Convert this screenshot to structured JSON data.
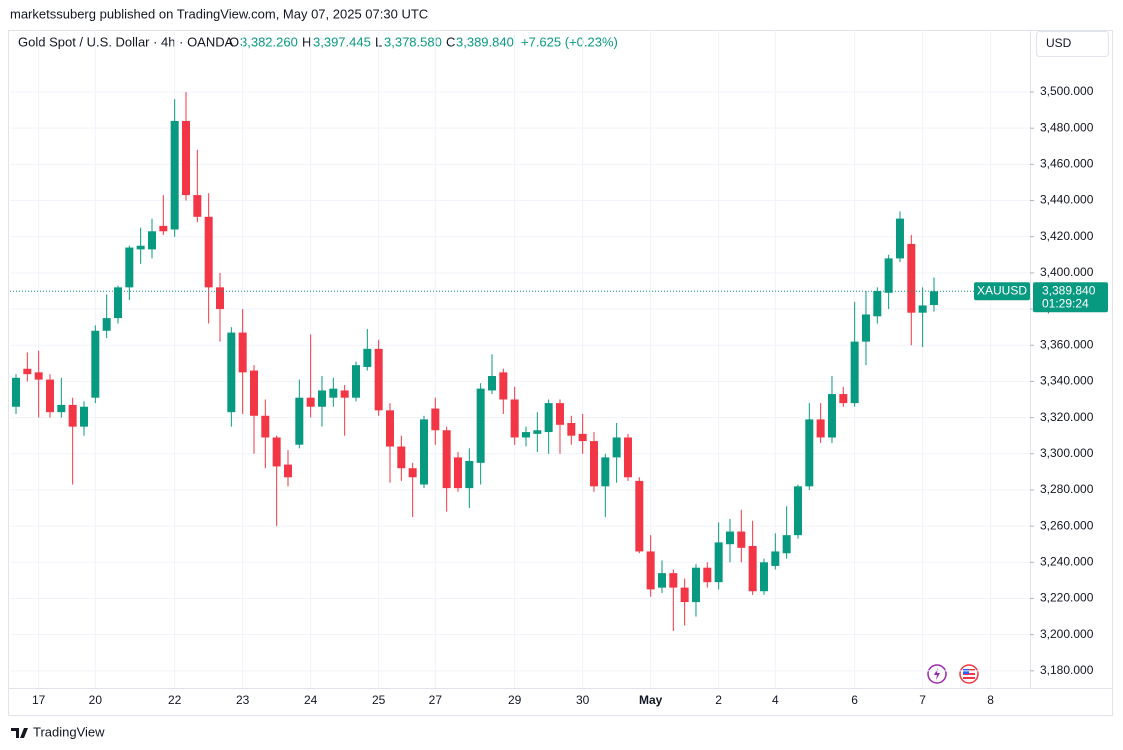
{
  "header": {
    "published": "marketssuberg published on TradingView.com, May 07, 2025 07:30 UTC",
    "symbol": "Gold Spot / U.S. Dollar · 4h · OANDA",
    "o_label": "O",
    "o_value": "3,382.260",
    "h_label": "H",
    "h_value": "3,397.445",
    "l_label": "L",
    "l_value": "3,378.580",
    "c_label": "C",
    "c_value": "3,389.840",
    "change": "+7.625 (+0.23%)",
    "currency": "USD"
  },
  "price_label": {
    "symbol": "XAUUSD",
    "price": "3,389.840",
    "countdown": "01:29:24"
  },
  "footer": {
    "brand": "TradingView"
  },
  "chart_data": {
    "type": "candlestick",
    "up_color": "#089981",
    "down_color": "#f23645",
    "grid": true,
    "categories": [
      null,
      null,
      "17",
      null,
      null,
      null,
      null,
      "20",
      null,
      null,
      null,
      null,
      null,
      null,
      "22",
      null,
      null,
      null,
      null,
      null,
      "23",
      null,
      null,
      null,
      null,
      null,
      "24",
      null,
      null,
      null,
      null,
      null,
      "25",
      null,
      null,
      null,
      null,
      "27",
      null,
      null,
      null,
      null,
      null,
      null,
      "29",
      null,
      null,
      null,
      null,
      null,
      "30",
      null,
      null,
      null,
      null,
      null,
      "May",
      null,
      null,
      null,
      null,
      null,
      "2",
      null,
      null,
      null,
      null,
      "4",
      null,
      null,
      null,
      null,
      null,
      null,
      "6",
      null,
      null,
      null,
      null,
      null,
      "7",
      null,
      null,
      null,
      null,
      null,
      "8"
    ],
    "open": [
      3326,
      3347,
      3345,
      3341,
      3323,
      3327,
      3315,
      3331,
      3368,
      3375,
      3392,
      3413,
      3413,
      3426,
      3424,
      3484,
      3443,
      3431,
      3392,
      3323,
      3367,
      3346,
      3321,
      3309,
      3294,
      3305,
      3331,
      3326,
      3331,
      3335,
      3331,
      3348,
      3358,
      3324,
      3304,
      3292,
      3283,
      3325,
      3313,
      3298,
      3281,
      3295,
      3335,
      3345,
      3330,
      3309,
      3311,
      3312,
      3328,
      3317,
      3311,
      3307,
      3282,
      3298,
      3309,
      3285,
      3246,
      3226,
      3234,
      3226,
      3218,
      3237,
      3229,
      3250,
      3257,
      3249,
      3224,
      3238,
      3245,
      3255,
      3282,
      3319,
      3309,
      3333,
      3328,
      3362,
      3376,
      3389,
      3408,
      3416,
      3378,
      3382.26,
      null,
      null,
      null,
      null,
      null
    ],
    "high": [
      3344,
      3356,
      3357,
      3344,
      3342,
      3331,
      3329,
      3371,
      3388,
      3393,
      3415,
      3425,
      3430,
      3443,
      3496,
      3500,
      3468,
      3444,
      3400,
      3370,
      3380,
      3349,
      3330,
      3310,
      3302,
      3341,
      3366,
      3343,
      3342,
      3338,
      3351,
      3369,
      3363,
      3328,
      3310,
      3295,
      3321,
      3331,
      3315,
      3301,
      3303,
      3339,
      3355,
      3347,
      3337,
      3315,
      3323,
      3330,
      3330,
      3321,
      3322,
      3312,
      3300,
      3317,
      3311,
      3287,
      3255,
      3241,
      3236,
      3231,
      3239,
      3240,
      3262,
      3264,
      3269,
      3263,
      3242,
      3256,
      3271,
      3283,
      3328,
      3328,
      3343,
      3337,
      3384,
      3390,
      3392,
      3410,
      3434,
      3421,
      3392,
      3397.445,
      null,
      null,
      null,
      null,
      null
    ],
    "low": [
      3322,
      3340,
      3320,
      3320,
      3320,
      3283,
      3310,
      3328,
      3364,
      3372,
      3385,
      3405,
      3408,
      3421,
      3420,
      3440,
      3428,
      3372,
      3362,
      3315,
      3322,
      3300,
      3292,
      3260,
      3282,
      3303,
      3320,
      3315,
      3326,
      3310,
      3329,
      3346,
      3321,
      3284,
      3285,
      3265,
      3281,
      3305,
      3268,
      3279,
      3270,
      3283,
      3333,
      3322,
      3305,
      3304,
      3301,
      3300,
      3300,
      3305,
      3300,
      3279,
      3265,
      3284,
      3285,
      3245,
      3221,
      3223,
      3202,
      3205,
      3210,
      3226,
      3225,
      3240,
      3240,
      3222,
      3222,
      3236,
      3242,
      3253,
      3280,
      3306,
      3306,
      3326,
      3326,
      3349,
      3372,
      3380,
      3406,
      3360,
      3359,
      3378.58,
      null,
      null,
      null,
      null,
      null
    ],
    "close": [
      3342,
      3344,
      3341,
      3323,
      3327,
      3315,
      3326,
      3368,
      3375,
      3392,
      3414,
      3415,
      3423,
      3423,
      3484,
      3443,
      3431,
      3392,
      3380,
      3367,
      3345,
      3321,
      3309,
      3293,
      3287,
      3331,
      3326,
      3335,
      3336,
      3331,
      3349,
      3358,
      3324,
      3304,
      3292,
      3287,
      3319,
      3313,
      3281,
      3281,
      3296,
      3336,
      3343,
      3330,
      3309,
      3312,
      3313,
      3328,
      3316,
      3310,
      3307,
      3282,
      3298,
      3309,
      3287,
      3246,
      3225,
      3234,
      3226,
      3218,
      3237,
      3229,
      3251,
      3257,
      3248,
      3224,
      3240,
      3246,
      3255,
      3282,
      3319,
      3309,
      3333,
      3328,
      3362,
      3377,
      3390,
      3408,
      3430,
      3378,
      3382,
      3389.84,
      null,
      null,
      null,
      null,
      null
    ],
    "ylim": [
      3170.5,
      3518.8
    ],
    "yticks": [
      {
        "value": 3180,
        "label": "3,180.000"
      },
      {
        "value": 3200,
        "label": "3,200.000"
      },
      {
        "value": 3220,
        "label": "3,220.000"
      },
      {
        "value": 3240,
        "label": "3,240.000"
      },
      {
        "value": 3260,
        "label": "3,260.000"
      },
      {
        "value": 3280,
        "label": "3,280.000"
      },
      {
        "value": 3300,
        "label": "3,300.000"
      },
      {
        "value": 3320,
        "label": "3,320.000"
      },
      {
        "value": 3340,
        "label": "3,340.000"
      },
      {
        "value": 3360,
        "label": "3,360.000"
      },
      {
        "value": 3380,
        "label": "3,380.000"
      },
      {
        "value": 3400,
        "label": "3,400.000"
      },
      {
        "value": 3420,
        "label": "3,420.000"
      },
      {
        "value": 3440,
        "label": "3,440.000"
      },
      {
        "value": 3460,
        "label": "3,460.000"
      },
      {
        "value": 3480,
        "label": "3,480.000"
      },
      {
        "value": 3500,
        "label": "3,500.000"
      }
    ]
  }
}
